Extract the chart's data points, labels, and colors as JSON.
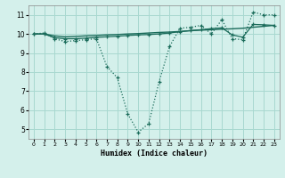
{
  "xlabel": "Humidex (Indice chaleur)",
  "bg_color": "#d4f0eb",
  "grid_color": "#a8d8d0",
  "line_color": "#1a6b5a",
  "xlim": [
    -0.5,
    23.5
  ],
  "ylim": [
    4.5,
    11.5
  ],
  "xticks": [
    0,
    1,
    2,
    3,
    4,
    5,
    6,
    7,
    8,
    9,
    10,
    11,
    12,
    13,
    14,
    15,
    16,
    17,
    18,
    19,
    20,
    21,
    22,
    23
  ],
  "yticks": [
    5,
    6,
    7,
    8,
    9,
    10,
    11
  ],
  "line1_x": [
    0,
    1,
    2,
    3,
    4,
    5,
    6,
    7,
    8,
    9,
    10,
    11,
    12,
    13,
    14,
    15,
    16,
    17,
    18,
    19,
    20,
    21,
    22,
    23
  ],
  "line1_y": [
    10.0,
    10.05,
    9.75,
    9.6,
    9.65,
    9.7,
    9.75,
    8.3,
    7.7,
    5.8,
    4.85,
    5.3,
    7.5,
    9.35,
    10.3,
    10.35,
    10.45,
    10.0,
    10.75,
    9.75,
    9.7,
    11.15,
    11.0,
    11.0
  ],
  "line2_x": [
    0,
    1,
    2,
    3,
    4,
    5,
    6,
    7,
    8,
    9,
    10,
    11,
    12,
    13,
    14,
    15,
    16,
    17,
    18,
    19,
    20,
    21,
    22,
    23
  ],
  "line2_y": [
    10.0,
    10.0,
    9.9,
    9.85,
    9.87,
    9.9,
    9.92,
    9.95,
    9.97,
    10.0,
    10.02,
    10.05,
    10.08,
    10.1,
    10.13,
    10.17,
    10.2,
    10.22,
    10.25,
    10.27,
    10.3,
    10.35,
    10.4,
    10.45
  ],
  "line3_x": [
    0,
    1,
    2,
    3,
    4,
    5,
    6,
    7,
    8,
    9,
    10,
    11,
    12,
    13,
    14,
    15,
    16,
    17,
    18,
    19,
    20,
    21,
    22,
    23
  ],
  "line3_y": [
    10.0,
    10.0,
    9.8,
    9.75,
    9.75,
    9.78,
    9.82,
    9.85,
    9.88,
    9.92,
    9.95,
    9.97,
    10.0,
    10.05,
    10.12,
    10.18,
    10.22,
    10.28,
    10.32,
    9.95,
    9.83,
    10.5,
    10.48,
    10.45
  ]
}
